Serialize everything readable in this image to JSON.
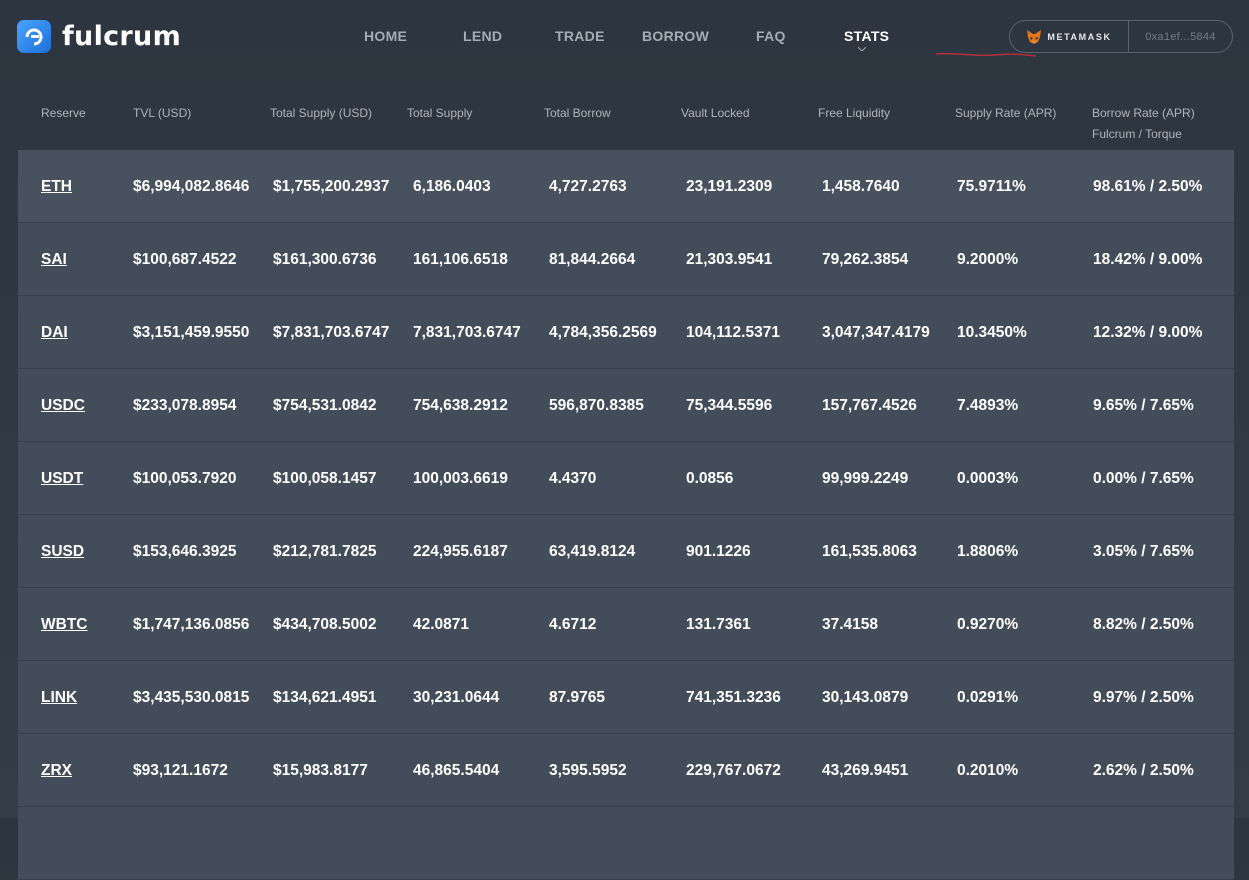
{
  "brand": {
    "name": "fulcrum"
  },
  "nav": [
    {
      "label": "HOME",
      "active": false
    },
    {
      "label": "LEND",
      "active": false
    },
    {
      "label": "TRADE",
      "active": false
    },
    {
      "label": "BORROW",
      "active": false
    },
    {
      "label": "FAQ",
      "active": false
    },
    {
      "label": "STATS",
      "active": true
    }
  ],
  "wallet": {
    "provider": "METAMASK",
    "address": "0xa1ef...5844"
  },
  "table": {
    "headers": [
      {
        "label": "Reserve",
        "sub": ""
      },
      {
        "label": "TVL (USD)",
        "sub": ""
      },
      {
        "label": "Total Supply (USD)",
        "sub": ""
      },
      {
        "label": "Total Supply",
        "sub": ""
      },
      {
        "label": "Total Borrow",
        "sub": ""
      },
      {
        "label": "Vault Locked",
        "sub": ""
      },
      {
        "label": "Free Liquidity",
        "sub": ""
      },
      {
        "label": "Supply Rate (APR)",
        "sub": ""
      },
      {
        "label": "Borrow Rate (APR)",
        "sub": "Fulcrum / Torque"
      }
    ],
    "rows": [
      [
        "ETH",
        "$6,994,082.8646",
        "$1,755,200.2937",
        "6,186.0403",
        "4,727.2763",
        "23,191.2309",
        "1,458.7640",
        "75.9711%",
        "98.61% / 2.50%"
      ],
      [
        "SAI",
        "$100,687.4522",
        "$161,300.6736",
        "161,106.6518",
        "81,844.2664",
        "21,303.9541",
        "79,262.3854",
        "9.2000%",
        "18.42% / 9.00%"
      ],
      [
        "DAI",
        "$3,151,459.9550",
        "$7,831,703.6747",
        "7,831,703.6747",
        "4,784,356.2569",
        "104,112.5371",
        "3,047,347.4179",
        "10.3450%",
        "12.32% / 9.00%"
      ],
      [
        "USDC",
        "$233,078.8954",
        "$754,531.0842",
        "754,638.2912",
        "596,870.8385",
        "75,344.5596",
        "157,767.4526",
        "7.4893%",
        "9.65% / 7.65%"
      ],
      [
        "USDT",
        "$100,053.7920",
        "$100,058.1457",
        "100,003.6619",
        "4.4370",
        "0.0856",
        "99,999.2249",
        "0.0003%",
        "0.00% / 7.65%"
      ],
      [
        "SUSD",
        "$153,646.3925",
        "$212,781.7825",
        "224,955.6187",
        "63,419.8124",
        "901.1226",
        "161,535.8063",
        "1.8806%",
        "3.05% / 7.65%"
      ],
      [
        "WBTC",
        "$1,747,136.0856",
        "$434,708.5002",
        "42.0871",
        "4.6712",
        "131.7361",
        "37.4158",
        "0.9270%",
        "8.82% / 2.50%"
      ],
      [
        "LINK",
        "$3,435,530.0815",
        "$134,621.4951",
        "30,231.0644",
        "87.9765",
        "741,351.3236",
        "30,143.0879",
        "0.0291%",
        "9.97% / 2.50%"
      ],
      [
        "ZRX",
        "$93,121.1672",
        "$15,983.8177",
        "46,865.5404",
        "3,595.5952",
        "229,767.0672",
        "43,269.9451",
        "0.2010%",
        "2.62% / 2.50%"
      ],
      [
        "",
        "",
        "",
        "",
        "",
        "",
        "",
        "",
        ""
      ]
    ]
  },
  "colors": {
    "accent": "#2f8cf0",
    "annotation": "#b3303b",
    "row_bg": "#434d59"
  },
  "icons": {
    "logo": "fulcrum-logo-icon",
    "wallet": "metamask-fox-icon"
  }
}
